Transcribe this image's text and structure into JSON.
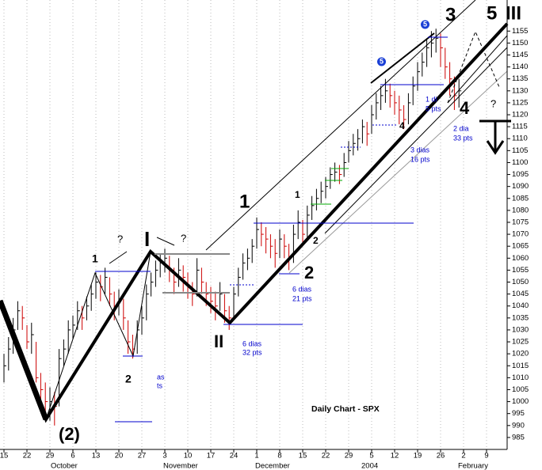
{
  "chart_data": {
    "type": "ohlc",
    "title": "Daily Chart - SPX",
    "high": [
      1020,
      1027,
      1035,
      1042,
      1040,
      1032,
      1033,
      1025,
      1012,
      1008,
      1006,
      1004,
      1022,
      1026,
      1034,
      1036,
      1042,
      1040,
      1044,
      1049,
      1054,
      1053,
      1056,
      1052,
      1046,
      1047,
      1043,
      1034,
      1028,
      1034,
      1040,
      1049,
      1054,
      1059,
      1062,
      1064,
      1061,
      1056,
      1060,
      1057,
      1054,
      1050,
      1060,
      1056,
      1050,
      1048,
      1046,
      1050,
      1045,
      1040,
      1048,
      1056,
      1062,
      1064,
      1068,
      1077,
      1075,
      1073,
      1070,
      1068,
      1072,
      1070,
      1066,
      1074,
      1080,
      1076,
      1082,
      1086,
      1089,
      1092,
      1094,
      1098,
      1100,
      1099,
      1104,
      1109,
      1112,
      1114,
      1118,
      1117,
      1124,
      1129,
      1132,
      1135,
      1133,
      1130,
      1128,
      1124,
      1129,
      1136,
      1142,
      1146,
      1152,
      1155,
      1156,
      1154,
      1148,
      1142,
      1136,
      1135
    ],
    "low": [
      1008,
      1013,
      1020,
      1030,
      1030,
      1022,
      1020,
      1008,
      1000,
      995,
      992,
      990,
      998,
      1015,
      1020,
      1026,
      1030,
      1030,
      1034,
      1038,
      1043,
      1042,
      1045,
      1040,
      1034,
      1036,
      1030,
      1020,
      1018,
      1020,
      1028,
      1034,
      1044,
      1048,
      1052,
      1054,
      1050,
      1045,
      1048,
      1046,
      1043,
      1040,
      1044,
      1045,
      1040,
      1037,
      1034,
      1038,
      1033,
      1030,
      1034,
      1044,
      1051,
      1055,
      1058,
      1064,
      1065,
      1062,
      1060,
      1056,
      1060,
      1060,
      1055,
      1058,
      1068,
      1065,
      1068,
      1076,
      1080,
      1083,
      1085,
      1089,
      1092,
      1091,
      1094,
      1100,
      1103,
      1105,
      1108,
      1107,
      1112,
      1118,
      1122,
      1125,
      1123,
      1120,
      1116,
      1114,
      1116,
      1124,
      1130,
      1136,
      1140,
      1144,
      1146,
      1140,
      1135,
      1128,
      1122,
      1123
    ],
    "close": [
      1015,
      1022,
      1030,
      1038,
      1035,
      1025,
      1028,
      1010,
      1005,
      1000,
      1000,
      998,
      1018,
      1022,
      1030,
      1032,
      1038,
      1035,
      1040,
      1045,
      1050,
      1048,
      1052,
      1045,
      1040,
      1042,
      1035,
      1025,
      1022,
      1030,
      1035,
      1045,
      1050,
      1055,
      1058,
      1060,
      1055,
      1050,
      1055,
      1052,
      1048,
      1045,
      1055,
      1050,
      1045,
      1042,
      1040,
      1045,
      1038,
      1035,
      1045,
      1052,
      1058,
      1060,
      1065,
      1072,
      1070,
      1068,
      1065,
      1062,
      1068,
      1065,
      1060,
      1070,
      1075,
      1070,
      1078,
      1082,
      1085,
      1088,
      1090,
      1095,
      1096,
      1095,
      1100,
      1105,
      1108,
      1110,
      1115,
      1112,
      1120,
      1125,
      1128,
      1130,
      1128,
      1125,
      1122,
      1118,
      1125,
      1132,
      1138,
      1142,
      1148,
      1150,
      1152,
      1148,
      1140,
      1135,
      1128,
      1130
    ],
    "up_color": "#000000",
    "down_color": "#cc0000",
    "ylim": [
      980,
      1168
    ],
    "yticks": [
      985,
      990,
      995,
      1000,
      1005,
      1010,
      1015,
      1020,
      1025,
      1030,
      1035,
      1040,
      1045,
      1050,
      1055,
      1060,
      1065,
      1070,
      1075,
      1080,
      1085,
      1090,
      1095,
      1100,
      1105,
      1110,
      1115,
      1120,
      1125,
      1130,
      1135,
      1140,
      1145,
      1150,
      1155
    ],
    "xtick_labels": [
      "15",
      "22",
      "29",
      "6",
      "13",
      "20",
      "27",
      "3",
      "10",
      "17",
      "24",
      "1",
      "8",
      "15",
      "22",
      "29",
      "5",
      "12",
      "19",
      "26",
      "2",
      "9"
    ],
    "month_labels": [
      "October",
      "November",
      "December",
      "2004",
      "February"
    ],
    "annotations": [
      "1",
      "?",
      "I",
      "?",
      "2",
      "(2)",
      "as",
      "ts",
      "II",
      "6 dias",
      "32 pts",
      "1",
      "1",
      "2",
      "2",
      "6 dias",
      "21 pts",
      "4",
      "3 dias",
      "16 pts",
      "3",
      "5",
      "III",
      "4",
      "?",
      "2 dia",
      "33 pts",
      "1 di",
      "5 pts",
      "5",
      "5"
    ],
    "grid": true
  }
}
